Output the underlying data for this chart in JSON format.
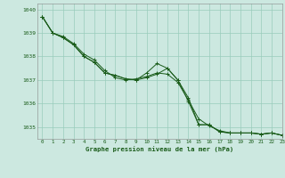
{
  "title": "Graphe pression niveau de la mer (hPa)",
  "background_color": "#cce8e0",
  "plot_bg_color": "#cce8e0",
  "grid_color": "#99ccbb",
  "line_color": "#1a5c1a",
  "marker_color": "#1a5c1a",
  "xlim": [
    -0.5,
    23
  ],
  "ylim": [
    1034.5,
    1040.25
  ],
  "yticks": [
    1035,
    1036,
    1037,
    1038,
    1039,
    1040
  ],
  "xticks": [
    0,
    1,
    2,
    3,
    4,
    5,
    6,
    7,
    8,
    9,
    10,
    11,
    12,
    13,
    14,
    15,
    16,
    17,
    18,
    19,
    20,
    21,
    22,
    23
  ],
  "series1": [
    1039.7,
    1039.0,
    1038.8,
    1038.5,
    1038.0,
    1037.75,
    1037.3,
    1037.2,
    1037.05,
    1037.0,
    1037.1,
    1037.25,
    1037.5,
    1037.0,
    1036.1,
    1035.1,
    1035.1,
    1034.8,
    1034.75,
    1034.75,
    1034.75,
    1034.7,
    1034.75,
    1034.65
  ],
  "series2": [
    1039.7,
    1039.0,
    1038.8,
    1038.5,
    1038.0,
    1037.75,
    1037.3,
    1037.2,
    1037.05,
    1037.0,
    1037.3,
    1037.7,
    1037.5,
    1037.0,
    1036.25,
    1035.1,
    1035.1,
    1034.8,
    1034.75,
    1034.75,
    1034.75,
    1034.7,
    1034.75,
    1034.65
  ],
  "series3": [
    1039.7,
    1039.0,
    1038.85,
    1038.55,
    1038.1,
    1037.85,
    1037.4,
    1037.1,
    1037.0,
    1037.05,
    1037.15,
    1037.3,
    1037.25,
    1036.9,
    1036.15,
    1035.35,
    1035.05,
    1034.85,
    1034.75,
    1034.75,
    1034.75,
    1034.7,
    1034.75,
    1034.65
  ]
}
